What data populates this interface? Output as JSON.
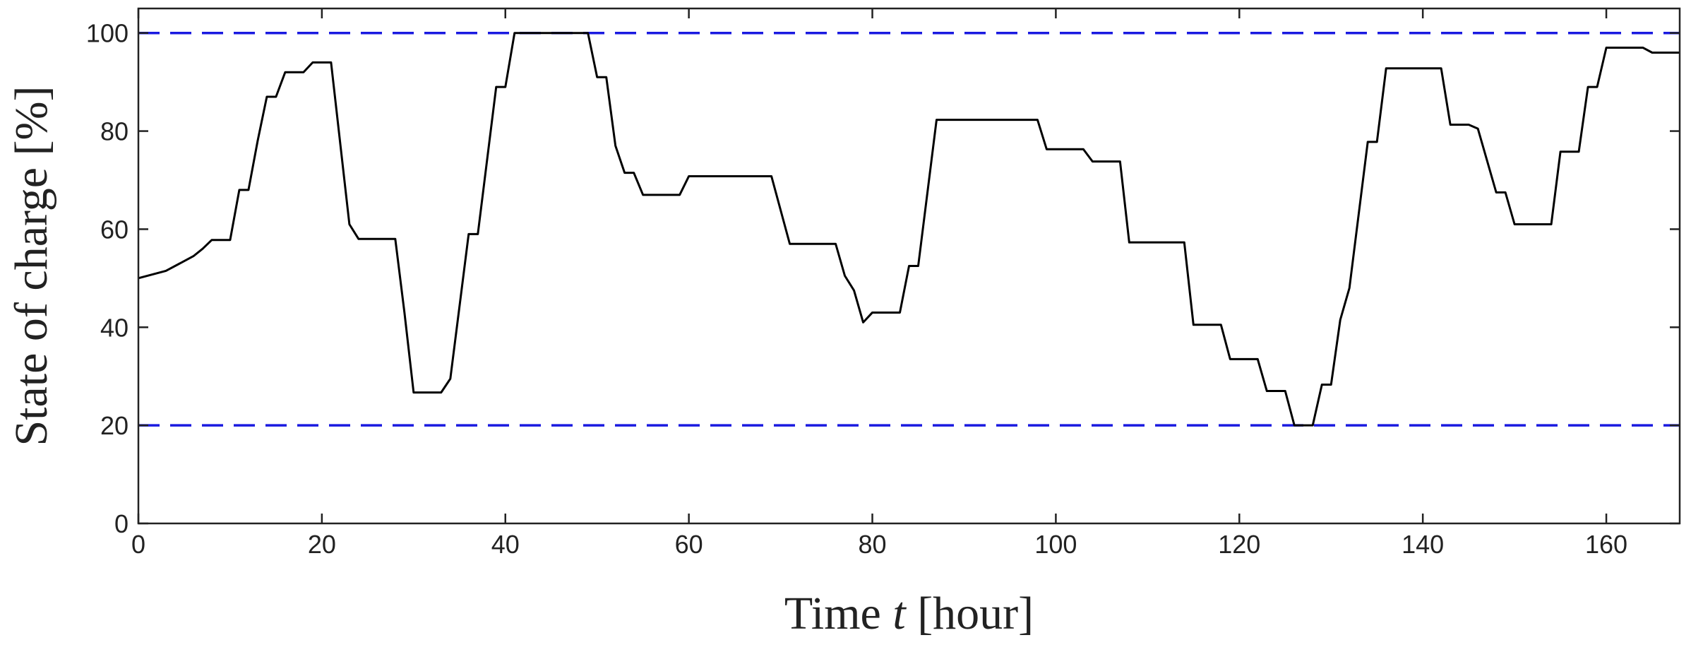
{
  "chart_data": {
    "type": "line",
    "title": "",
    "xlabel": {
      "prefix": "Time ",
      "variable": "t",
      "suffix": " [hour]"
    },
    "ylabel": "State of charge [%]",
    "xlim": [
      0,
      168
    ],
    "ylim": [
      0,
      105
    ],
    "xticks": [
      0,
      20,
      40,
      60,
      80,
      100,
      120,
      140,
      160
    ],
    "yticks": [
      0,
      20,
      40,
      60,
      80,
      100
    ],
    "grid": false,
    "limits": [
      {
        "value": 100,
        "color": "#1a1ae0",
        "style": "dashed"
      },
      {
        "value": 20,
        "color": "#1a1ae0",
        "style": "dashed"
      }
    ],
    "series": [
      {
        "color": "#000000",
        "x": [
          0,
          3,
          6,
          7,
          8,
          10,
          11,
          12,
          13,
          14,
          15,
          16,
          18,
          19,
          21,
          23,
          24,
          28,
          29,
          30,
          33,
          34,
          36,
          37,
          39,
          40,
          41,
          42,
          49,
          50,
          51,
          52,
          53,
          54,
          55,
          56,
          59,
          60,
          69,
          71,
          76,
          77,
          78,
          79,
          80,
          83,
          84,
          85,
          87,
          98,
          99,
          103,
          104,
          107,
          108,
          114,
          115,
          118,
          119,
          122,
          123,
          125,
          126,
          127,
          128,
          129,
          130,
          131,
          132,
          134,
          135,
          136,
          142,
          143,
          145,
          146,
          148,
          149,
          150,
          154,
          155,
          157,
          158,
          159,
          160,
          164,
          165,
          168
        ],
        "y": [
          50,
          51.5,
          54.5,
          56,
          57.8,
          57.8,
          68,
          68,
          78,
          87,
          87,
          92,
          92,
          94,
          94,
          61,
          58,
          58,
          43,
          26.7,
          26.7,
          29.5,
          59,
          59,
          89,
          89,
          100,
          100,
          100,
          91,
          91,
          77,
          71.5,
          71.5,
          67,
          67,
          67,
          70.8,
          70.8,
          57,
          57,
          50.5,
          47.5,
          41,
          43,
          43,
          52.5,
          52.5,
          82.3,
          82.3,
          76.3,
          76.3,
          73.8,
          73.8,
          57.3,
          57.3,
          40.5,
          40.5,
          33.5,
          33.5,
          27,
          27,
          20,
          20,
          20,
          28.3,
          28.3,
          41.5,
          48,
          77.8,
          77.8,
          92.8,
          92.8,
          81.3,
          81.3,
          80.5,
          67.5,
          67.5,
          61,
          61,
          75.8,
          75.8,
          89,
          89,
          97,
          97,
          96,
          96
        ]
      }
    ]
  }
}
